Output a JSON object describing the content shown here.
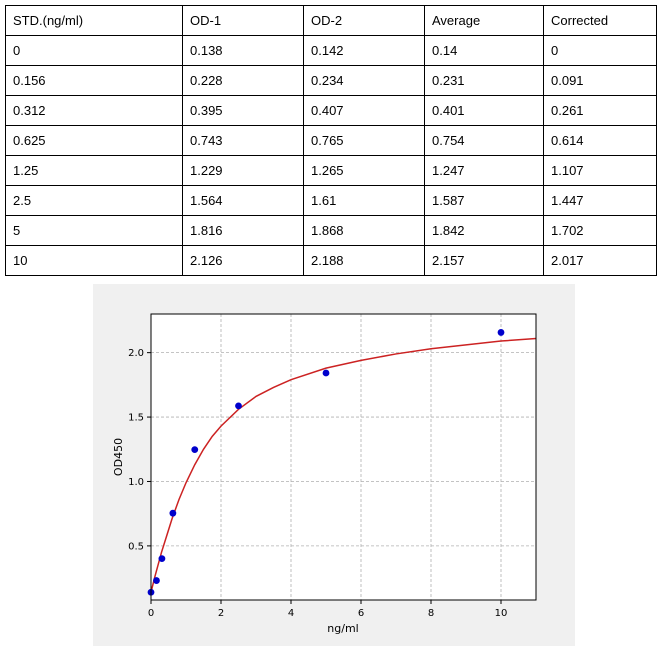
{
  "table": {
    "headers": [
      "STD.(ng/ml)",
      "OD-1",
      "OD-2",
      "Average",
      "Corrected"
    ],
    "rows": [
      [
        "0",
        "0.138",
        "0.142",
        "0.14",
        "0"
      ],
      [
        "0.156",
        "0.228",
        "0.234",
        "0.231",
        "0.091"
      ],
      [
        "0.312",
        "0.395",
        "0.407",
        "0.401",
        "0.261"
      ],
      [
        "0.625",
        "0.743",
        "0.765",
        "0.754",
        "0.614"
      ],
      [
        "1.25",
        "1.229",
        "1.265",
        "1.247",
        "1.107"
      ],
      [
        "2.5",
        "1.564",
        "1.61",
        "1.587",
        "1.447"
      ],
      [
        "5",
        "1.816",
        "1.868",
        "1.842",
        "1.702"
      ],
      [
        "10",
        "2.126",
        "2.188",
        "2.157",
        "2.017"
      ]
    ]
  },
  "chart_data": {
    "type": "scatter",
    "xlabel": "ng/ml",
    "ylabel": "OD450",
    "xlim": [
      0,
      11
    ],
    "ylim": [
      0.08,
      2.3
    ],
    "xticks": [
      0,
      2,
      4,
      6,
      8,
      10
    ],
    "yticks": [
      0.5,
      1.0,
      1.5,
      2.0
    ],
    "xtick_labels": [
      "0",
      "2",
      "4",
      "6",
      "8",
      "10"
    ],
    "ytick_labels": [
      "0.5",
      "1.0",
      "1.5",
      "2.0"
    ],
    "grid": true,
    "points": {
      "x": [
        0,
        0.156,
        0.312,
        0.625,
        1.25,
        2.5,
        5,
        10
      ],
      "y": [
        0.14,
        0.231,
        0.401,
        0.754,
        1.247,
        1.587,
        1.842,
        2.157
      ],
      "color": "#0000cc"
    },
    "fit_curve": {
      "x": [
        0,
        0.1,
        0.2,
        0.3,
        0.45,
        0.6,
        0.8,
        1.0,
        1.25,
        1.5,
        1.75,
        2.0,
        2.5,
        3.0,
        3.5,
        4.0,
        5.0,
        6.0,
        7.0,
        8.0,
        9.0,
        10.0,
        11.0
      ],
      "y": [
        0.14,
        0.25,
        0.35,
        0.45,
        0.58,
        0.71,
        0.86,
        0.99,
        1.13,
        1.25,
        1.35,
        1.43,
        1.56,
        1.66,
        1.73,
        1.79,
        1.88,
        1.94,
        1.99,
        2.03,
        2.06,
        2.09,
        2.11
      ],
      "color": "#cc2222"
    }
  }
}
